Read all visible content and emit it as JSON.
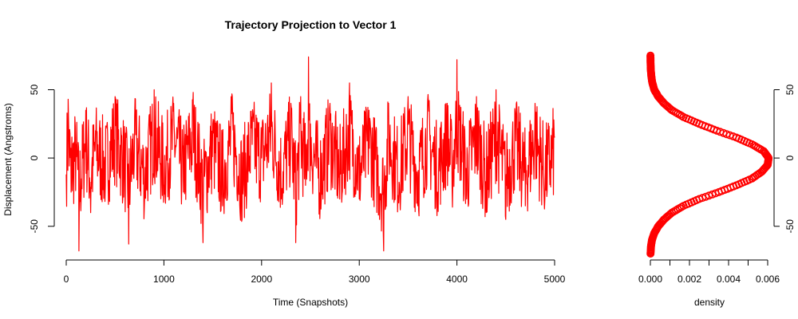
{
  "chart_data": [
    {
      "type": "line",
      "title": "Trajectory Projection to Vector 1",
      "xlabel": "Time (Snapshots)",
      "ylabel": "Displacement (Angstroms)",
      "xlim": [
        0,
        5000
      ],
      "ylim": [
        -70,
        76
      ],
      "x_ticks": [
        0,
        1000,
        2000,
        3000,
        4000,
        5000
      ],
      "y_ticks": [
        -50,
        0,
        50
      ],
      "color": "#ff0000",
      "series": [
        {
          "values_summary": "5000 snapshots of noisy displacement oscillating around 0, mostly between -45 and 45, extremes near -70 and +76",
          "x": [
            0,
            20,
            50,
            100,
            130,
            200,
            250,
            300,
            400,
            500,
            600,
            640,
            700,
            800,
            900,
            1000,
            1100,
            1200,
            1300,
            1400,
            1500,
            1600,
            1700,
            1800,
            1900,
            2000,
            2100,
            2200,
            2300,
            2350,
            2400,
            2450,
            2480,
            2500,
            2600,
            2700,
            2800,
            2900,
            3000,
            3100,
            3200,
            3250,
            3300,
            3400,
            3500,
            3600,
            3700,
            3800,
            3900,
            3950,
            4000,
            4100,
            4200,
            4300,
            4400,
            4500,
            4600,
            4700,
            4800,
            4900,
            5000
          ],
          "y": [
            -12,
            43,
            -25,
            10,
            -70,
            35,
            -40,
            20,
            -20,
            45,
            -15,
            -63,
            30,
            -35,
            50,
            -20,
            40,
            -25,
            48,
            -62,
            25,
            -35,
            45,
            -45,
            30,
            0,
            55,
            -30,
            40,
            -62,
            45,
            -20,
            76,
            25,
            -35,
            40,
            -30,
            55,
            -30,
            35,
            -40,
            -68,
            40,
            -30,
            45,
            -35,
            42,
            -25,
            40,
            -20,
            72,
            -30,
            45,
            -40,
            50,
            -45,
            30,
            -35,
            40,
            -30,
            15
          ]
        }
      ]
    },
    {
      "type": "line",
      "title": "",
      "xlabel": "density",
      "ylabel": "",
      "xlim": [
        0,
        0.006
      ],
      "ylim": [
        -70,
        76
      ],
      "x_ticks": [
        0.0,
        0.002,
        0.004,
        0.006
      ],
      "x_tick_labels": [
        "0.000",
        "0.002",
        "0.004",
        "0.006"
      ],
      "y_ticks": [
        -50,
        0,
        50
      ],
      "y_axis_side": "right",
      "marker": "circle",
      "color": "#ff0000",
      "series": [
        {
          "y": [
            -70,
            -65,
            -60,
            -55,
            -50,
            -45,
            -40,
            -35,
            -30,
            -25,
            -20,
            -15,
            -10,
            -5,
            0,
            5,
            10,
            15,
            20,
            25,
            30,
            35,
            40,
            45,
            50,
            55,
            60,
            65,
            70,
            75
          ],
          "density": [
            1e-05,
            3e-05,
            8e-05,
            0.0002,
            0.0004,
            0.0007,
            0.0011,
            0.0017,
            0.0025,
            0.0035,
            0.0044,
            0.0052,
            0.0057,
            0.006,
            0.00605,
            0.0058,
            0.0052,
            0.0044,
            0.0034,
            0.0025,
            0.0017,
            0.0011,
            0.0007,
            0.0004,
            0.0002,
            0.0001,
            5e-05,
            2e-05,
            1e-05,
            5e-06
          ]
        }
      ]
    }
  ]
}
